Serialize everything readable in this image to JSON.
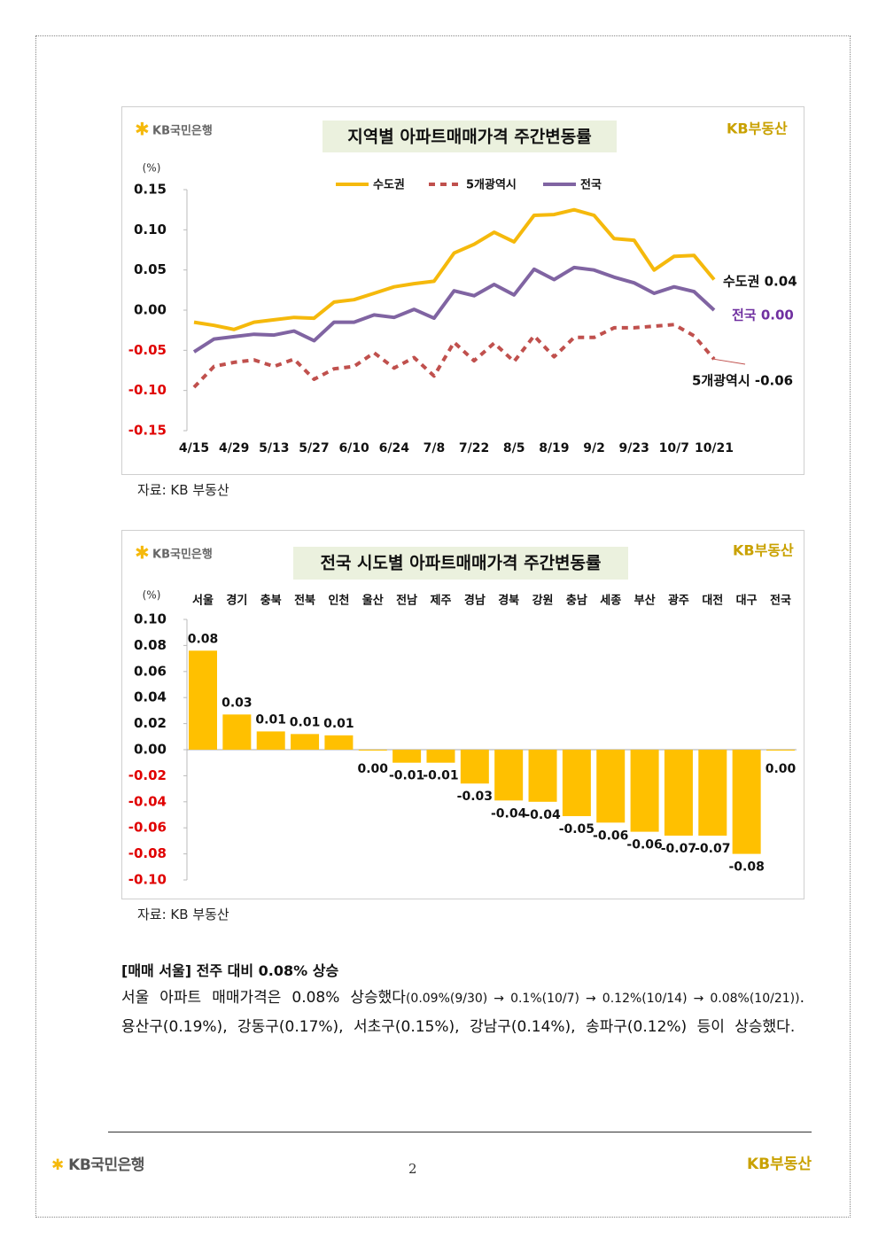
{
  "brand": {
    "bank": "KB국민은행",
    "realty": "KB부동산"
  },
  "chart_data": [
    {
      "type": "line",
      "title": "지역별 아파트매매가격 주간변동률",
      "unit_label": "(%)",
      "categories": [
        "4/15",
        null,
        "4/29",
        null,
        "5/13",
        null,
        "5/27",
        null,
        "6/10",
        null,
        "6/24",
        null,
        "7/8",
        null,
        "7/22",
        null,
        "8/5",
        null,
        "8/19",
        null,
        "9/2",
        null,
        "9/23",
        null,
        "10/7",
        null,
        "10/21"
      ],
      "series": [
        {
          "name": "수도권",
          "color": "#f5b90c",
          "style": "solid",
          "values": [
            -0.015,
            -0.019,
            -0.024,
            -0.015,
            -0.012,
            -0.009,
            -0.01,
            0.01,
            0.013,
            0.021,
            0.029,
            0.033,
            0.036,
            0.071,
            0.082,
            0.097,
            0.085,
            0.118,
            0.119,
            0.125,
            0.118,
            0.089,
            0.087,
            0.05,
            0.067,
            0.068,
            0.038
          ]
        },
        {
          "name": "5개광역시",
          "color": "#c0504d",
          "style": "dashed",
          "values": [
            -0.096,
            -0.07,
            -0.065,
            -0.062,
            -0.07,
            -0.061,
            -0.086,
            -0.073,
            -0.07,
            -0.053,
            -0.072,
            -0.059,
            -0.082,
            -0.04,
            -0.063,
            -0.041,
            -0.064,
            -0.032,
            -0.058,
            -0.034,
            -0.034,
            -0.022,
            -0.022,
            -0.02,
            -0.018,
            -0.032,
            -0.061
          ]
        },
        {
          "name": "전국",
          "color": "#8064a2",
          "style": "solid",
          "values": [
            -0.052,
            -0.036,
            -0.033,
            -0.03,
            -0.031,
            -0.026,
            -0.038,
            -0.015,
            -0.015,
            -0.006,
            -0.009,
            0.001,
            -0.01,
            0.024,
            0.018,
            0.032,
            0.019,
            0.051,
            0.038,
            0.053,
            0.05,
            0.041,
            0.034,
            0.021,
            0.029,
            0.023,
            0.0
          ]
        }
      ],
      "annotations": [
        "수도권 0.04",
        "전국 0.00",
        "5개광역시 -0.06"
      ],
      "ylim": [
        -0.15,
        0.15
      ],
      "yticks": [
        0.15,
        {
          "value": 0.1,
          "label": "0.10"
        },
        0.05,
        {
          "value": 0,
          "label": "0.00"
        },
        -0.05,
        {
          "value": -0.1,
          "label": "-0.10"
        },
        -0.15
      ],
      "negative_tick_color": "#e00000",
      "grid": false,
      "source": "자료: KB 부동산"
    },
    {
      "type": "bar",
      "title": "전국 시도별 아파트매매가격 주간변동률",
      "unit_label": "(%)",
      "categories": [
        "서울",
        "경기",
        "충북",
        "전북",
        "인천",
        "울산",
        "전남",
        "제주",
        "경남",
        "경북",
        "강원",
        "충남",
        "세종",
        "부산",
        "광주",
        "대전",
        "대구",
        "전국"
      ],
      "values": [
        0.076,
        0.027,
        0.014,
        0.012,
        0.011,
        0.0,
        -0.01,
        -0.01,
        -0.026,
        -0.039,
        -0.04,
        -0.051,
        -0.056,
        -0.063,
        -0.066,
        -0.066,
        -0.08,
        0.0
      ],
      "value_labels": [
        "0.08",
        "0.03",
        "0.01",
        "0.01",
        "0.01",
        "0.00",
        "-0.01",
        "-0.01",
        "-0.03",
        "-0.04",
        "-0.04",
        "-0.05",
        "-0.06",
        "-0.06",
        "-0.07",
        "-0.07",
        "-0.08",
        "0.00"
      ],
      "color": "#ffc000",
      "ylim": [
        -0.1,
        0.1
      ],
      "yticks": [
        {
          "value": 0.1,
          "label": "0.10"
        },
        0.08,
        0.06,
        0.04,
        0.02,
        {
          "value": 0,
          "label": "0.00"
        },
        -0.02,
        -0.04,
        -0.06,
        -0.08,
        {
          "value": -0.1,
          "label": "-0.10"
        }
      ],
      "negative_tick_color": "#e00000",
      "grid": false,
      "source": "자료: KB 부동산"
    }
  ],
  "text": {
    "heading": "[매매 서울] 전주 대비 0.08% 상승",
    "body": [
      "서울 아파트 매매가격은 0.08% 상승했다",
      "(0.09%(9/30) → 0.1%(10/7) → 0.12%(10/14) → 0.08%(10/21))",
      ". 용산구(0.19%), 강동구(0.17%), 서초구(0.15%), 강남구(0.14%), 송파구(0.12%) 등이 상승했다."
    ]
  },
  "page_number": "2"
}
